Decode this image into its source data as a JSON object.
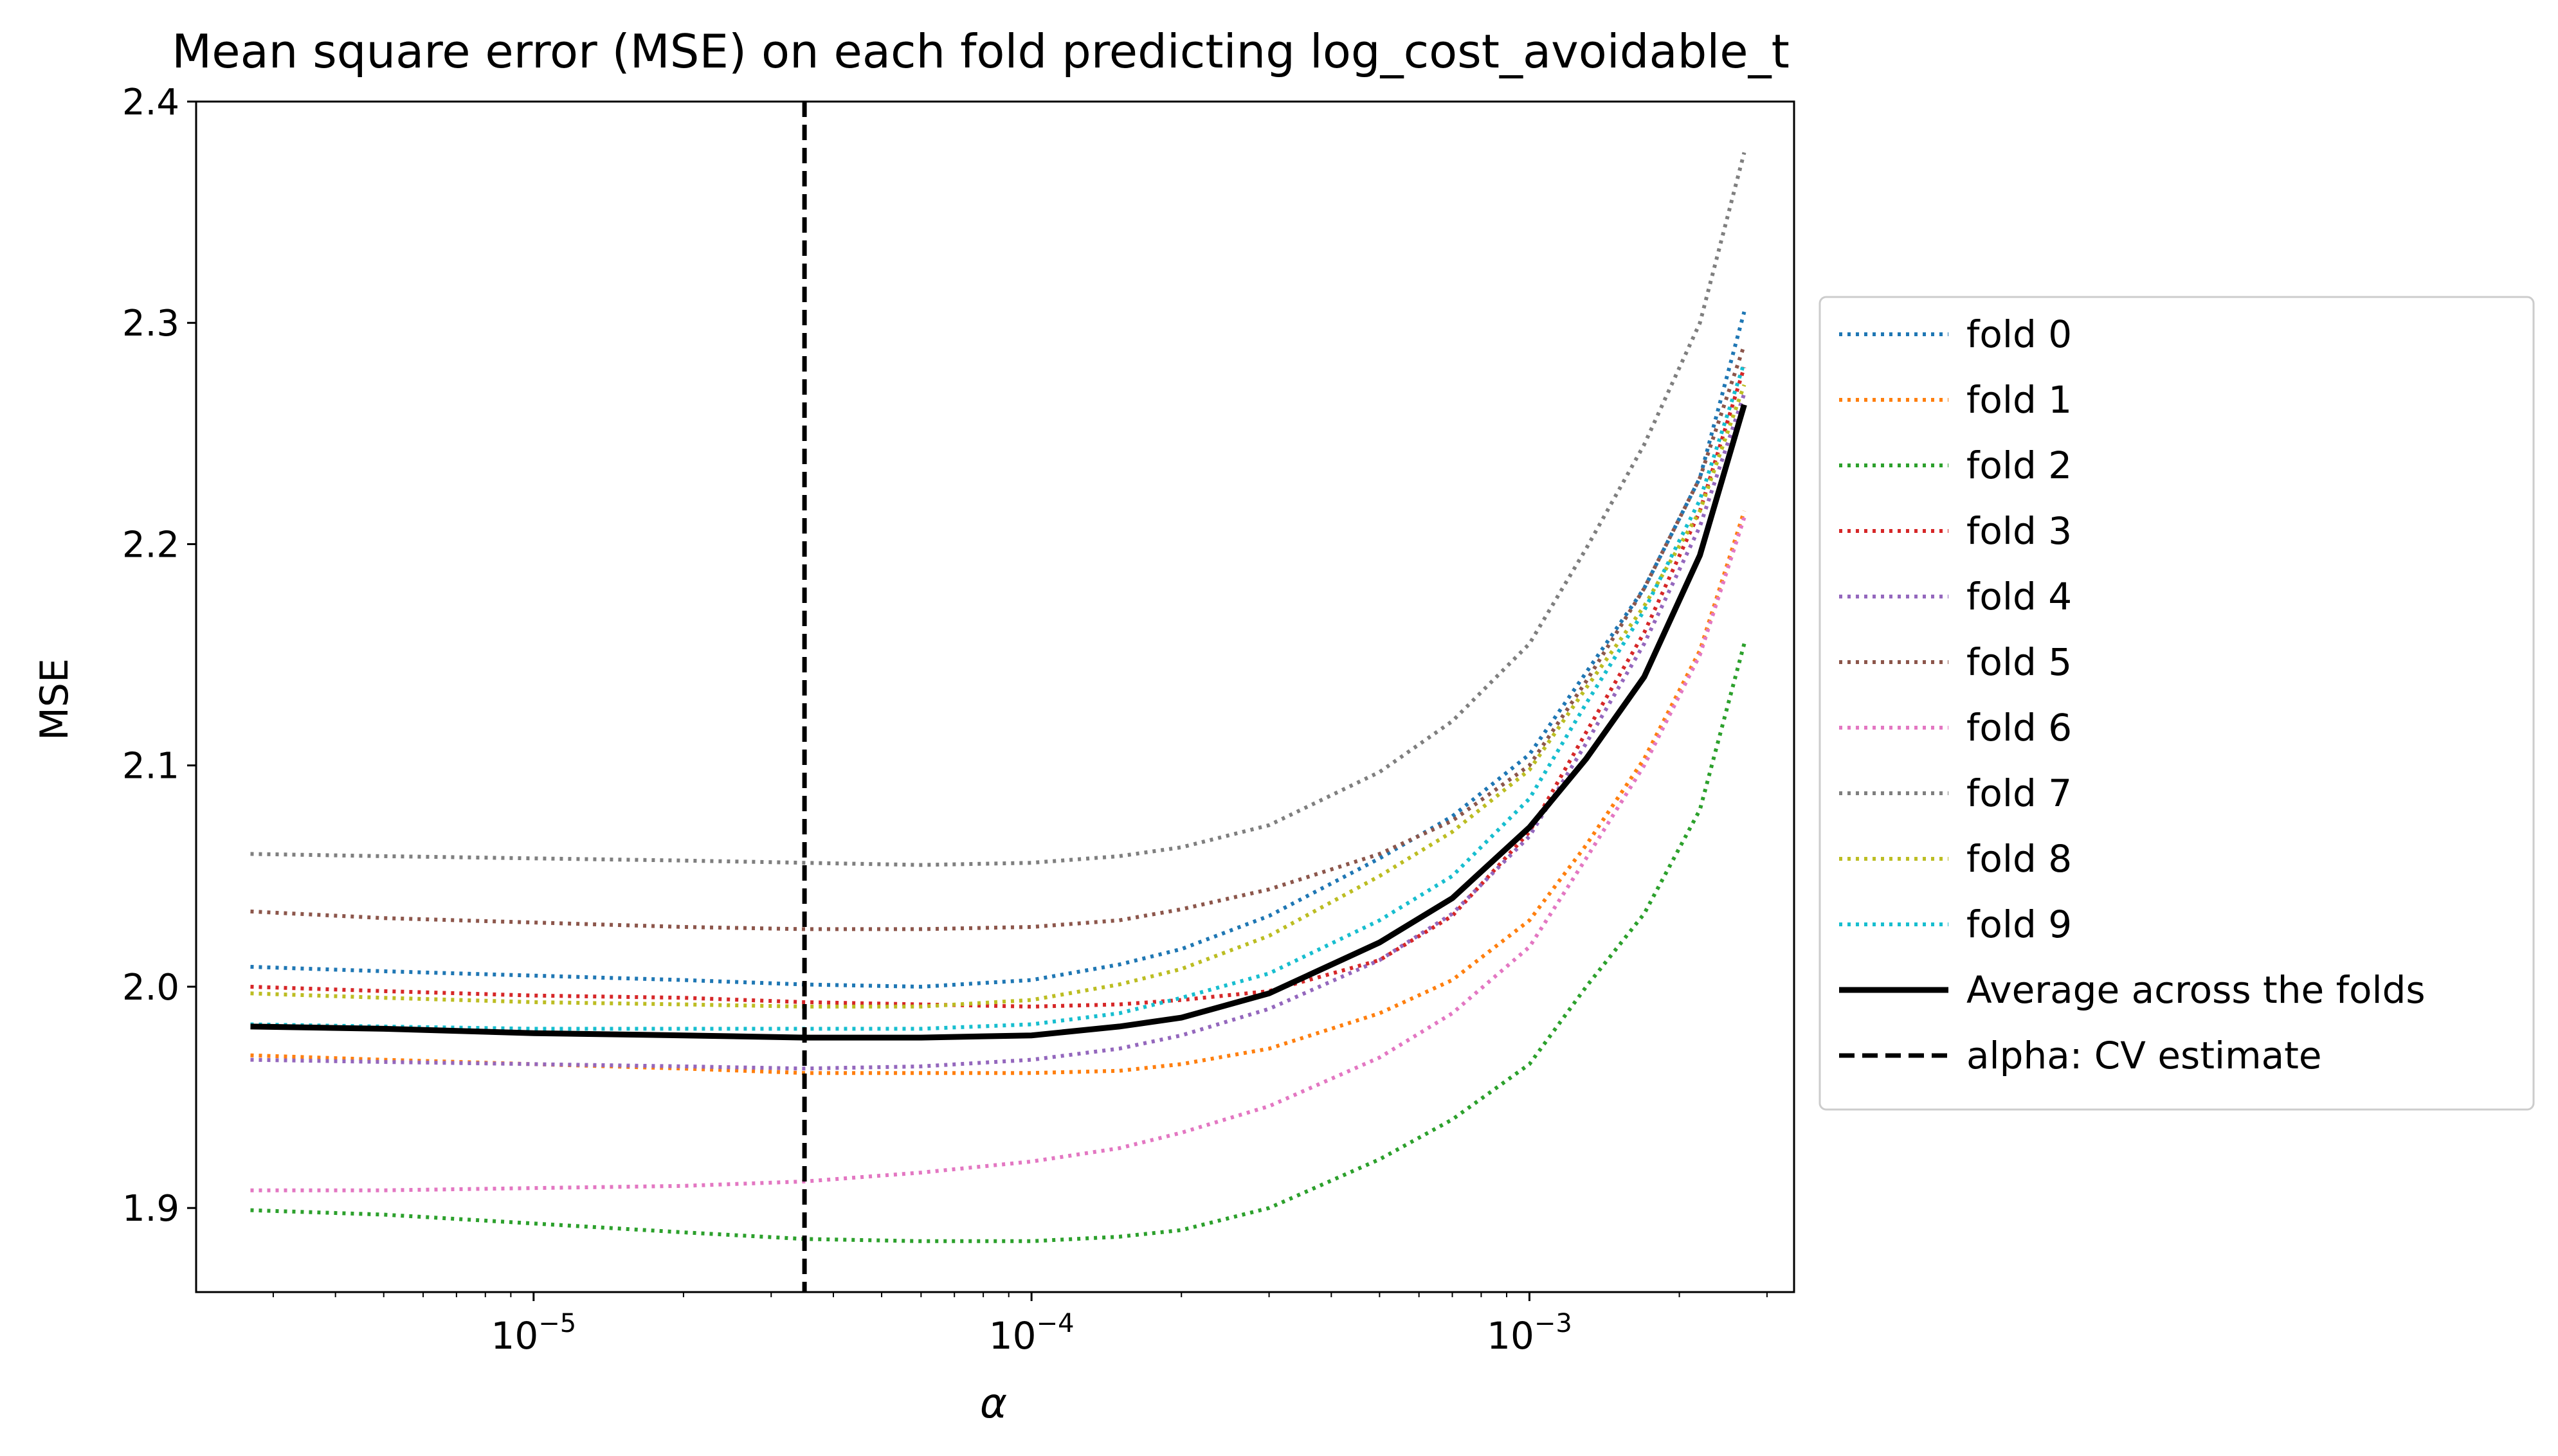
{
  "chart_data": {
    "type": "line",
    "title": "Mean square error (MSE) on each fold predicting log_cost_avoidable_t",
    "xlabel": "α",
    "ylabel": "MSE",
    "xscale": "log",
    "xlim": [
      2.1e-06,
      0.0034
    ],
    "ylim": [
      1.862,
      2.4
    ],
    "yticks": [
      1.9,
      2.0,
      2.1,
      2.2,
      2.3,
      2.4
    ],
    "ytick_labels": [
      "1.9",
      "2.0",
      "2.1",
      "2.2",
      "2.3",
      "2.4"
    ],
    "xtick_major": [
      1e-05,
      0.0001,
      0.001
    ],
    "xtick_labels": [
      {
        "base": "10",
        "exp": "−5"
      },
      {
        "base": "10",
        "exp": "−4"
      },
      {
        "base": "10",
        "exp": "−3"
      }
    ],
    "grid": false,
    "legend_position": "center-right, outside plot",
    "x": [
      2.7e-06,
      5e-06,
      1e-05,
      2e-05,
      3.5e-05,
      6e-05,
      0.0001,
      0.00015,
      0.0002,
      0.0003,
      0.0005,
      0.0007,
      0.001,
      0.0013,
      0.0017,
      0.0022,
      0.0027
    ],
    "series": [
      {
        "name": "fold 0",
        "color": "#1f77b4",
        "dash": "dotted",
        "values": [
          2.009,
          2.007,
          2.005,
          2.003,
          2.001,
          2.0,
          2.003,
          2.01,
          2.017,
          2.032,
          2.058,
          2.077,
          2.105,
          2.142,
          2.18,
          2.23,
          2.305
        ]
      },
      {
        "name": "fold 1",
        "color": "#ff7f0e",
        "dash": "dotted",
        "values": [
          1.969,
          1.967,
          1.965,
          1.963,
          1.961,
          1.961,
          1.961,
          1.962,
          1.965,
          1.972,
          1.988,
          2.003,
          2.03,
          2.064,
          2.103,
          2.152,
          2.215
        ]
      },
      {
        "name": "fold 2",
        "color": "#2ca02c",
        "dash": "dotted",
        "values": [
          1.899,
          1.897,
          1.893,
          1.889,
          1.886,
          1.885,
          1.885,
          1.887,
          1.89,
          1.9,
          1.922,
          1.94,
          1.965,
          2.0,
          2.033,
          2.08,
          2.155
        ]
      },
      {
        "name": "fold 3",
        "color": "#d62728",
        "dash": "dotted",
        "values": [
          2.0,
          1.998,
          1.996,
          1.995,
          1.993,
          1.992,
          1.991,
          1.992,
          1.994,
          1.998,
          2.012,
          2.032,
          2.07,
          2.115,
          2.16,
          2.215,
          2.28
        ]
      },
      {
        "name": "fold 4",
        "color": "#9467bd",
        "dash": "dotted",
        "values": [
          1.967,
          1.966,
          1.965,
          1.964,
          1.963,
          1.964,
          1.967,
          1.972,
          1.978,
          1.99,
          2.012,
          2.033,
          2.068,
          2.11,
          2.155,
          2.208,
          2.268
        ]
      },
      {
        "name": "fold 5",
        "color": "#8c564b",
        "dash": "dotted",
        "values": [
          2.034,
          2.031,
          2.029,
          2.027,
          2.026,
          2.026,
          2.027,
          2.03,
          2.035,
          2.044,
          2.06,
          2.075,
          2.1,
          2.138,
          2.18,
          2.23,
          2.29
        ]
      },
      {
        "name": "fold 6",
        "color": "#e377c2",
        "dash": "dotted",
        "values": [
          1.908,
          1.908,
          1.909,
          1.91,
          1.912,
          1.916,
          1.921,
          1.927,
          1.934,
          1.946,
          1.968,
          1.988,
          2.018,
          2.058,
          2.1,
          2.15,
          2.212
        ]
      },
      {
        "name": "fold 7",
        "color": "#7f7f7f",
        "dash": "dotted",
        "values": [
          2.06,
          2.059,
          2.058,
          2.057,
          2.056,
          2.055,
          2.056,
          2.059,
          2.063,
          2.073,
          2.097,
          2.12,
          2.155,
          2.198,
          2.245,
          2.3,
          2.377
        ]
      },
      {
        "name": "fold 8",
        "color": "#bcbd22",
        "dash": "dotted",
        "values": [
          1.997,
          1.995,
          1.993,
          1.992,
          1.991,
          1.991,
          1.994,
          2.001,
          2.008,
          2.023,
          2.05,
          2.07,
          2.098,
          2.135,
          2.172,
          2.215,
          2.272
        ]
      },
      {
        "name": "fold 9",
        "color": "#17becf",
        "dash": "dotted",
        "values": [
          1.983,
          1.982,
          1.981,
          1.981,
          1.981,
          1.981,
          1.983,
          1.988,
          1.995,
          2.006,
          2.03,
          2.05,
          2.085,
          2.128,
          2.17,
          2.22,
          2.282
        ]
      },
      {
        "name": "Average across the folds",
        "color": "#000000",
        "dash": "solid",
        "width": "thick",
        "values": [
          1.982,
          1.981,
          1.979,
          1.978,
          1.977,
          1.977,
          1.978,
          1.982,
          1.986,
          1.997,
          2.02,
          2.04,
          2.072,
          2.103,
          2.14,
          2.195,
          2.263
        ]
      }
    ],
    "vline": {
      "name": "alpha: CV estimate",
      "x": 3.5e-05,
      "color": "#000000",
      "dash": "dashed"
    }
  }
}
